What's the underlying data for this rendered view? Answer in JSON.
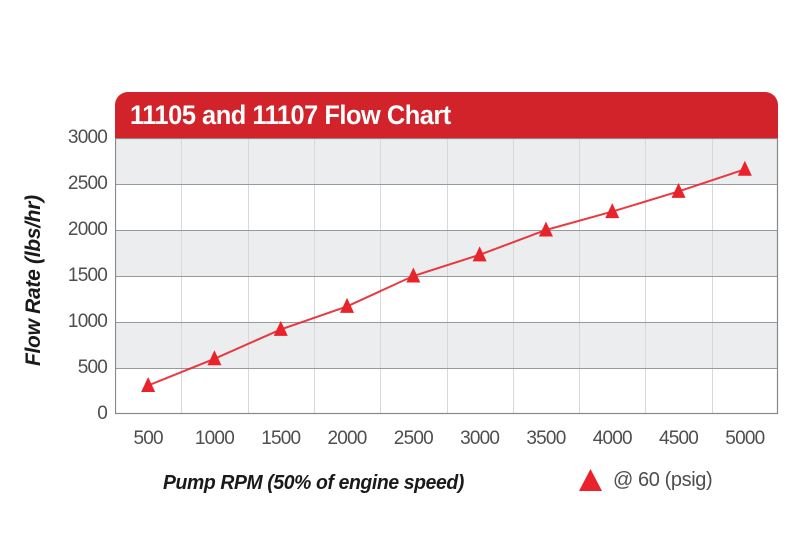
{
  "header": {
    "title": "11105 and 11107 Flow Chart",
    "bar_color": "#D2232A",
    "text_color": "#FFFFFF"
  },
  "chart_data": {
    "type": "line",
    "title": "11105 and 11107 Flow Chart",
    "xlabel": "Pump RPM (50% of engine speed)",
    "ylabel": "Flow Rate (lbs/hr)",
    "categories": [
      500,
      1000,
      1500,
      2000,
      2500,
      3000,
      3500,
      4000,
      4500,
      5000
    ],
    "series": [
      {
        "name": "@ 60 (psig)",
        "marker": "triangle-up",
        "color": "#E8232B",
        "values": [
          310,
          600,
          920,
          1170,
          1500,
          1730,
          2000,
          2200,
          2420,
          2660
        ]
      }
    ],
    "ylim": [
      0,
      3000
    ],
    "yticks": [
      0,
      500,
      1000,
      1500,
      2000,
      2500,
      3000
    ],
    "grid": {
      "horizontal": true,
      "vertical": "slot-boundaries",
      "band_fill": [
        "#ECEDEF",
        "#FFFFFF"
      ],
      "h_line_color": "#98999B",
      "v_line_color": "#D6D8DA",
      "border_color": "#87898C"
    },
    "legend": {
      "position": "bottom-right",
      "label": "@ 60 (psig)",
      "marker_color": "#E8232B"
    }
  }
}
